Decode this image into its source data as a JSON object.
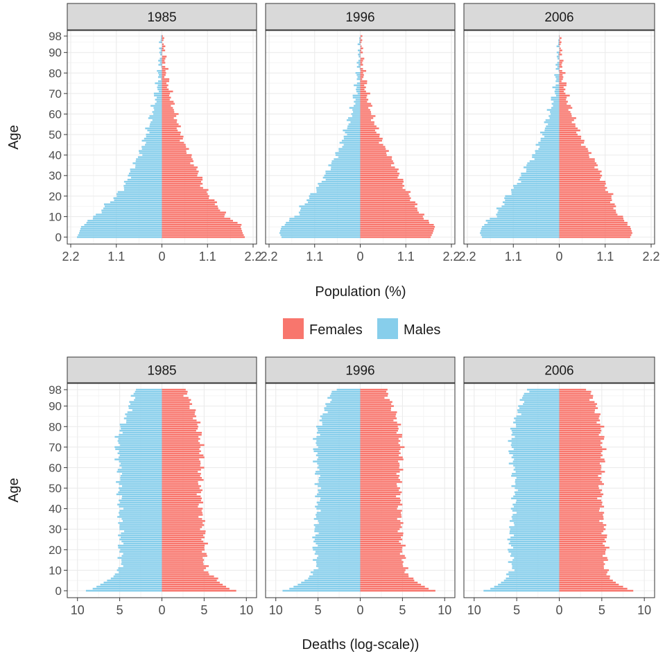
{
  "legend": {
    "items": [
      {
        "label": "Females",
        "color": "#F8766D"
      },
      {
        "label": "Males",
        "color": "#87CEEB"
      }
    ],
    "placement": "between-plots"
  },
  "chart_data": [
    {
      "type": "bar",
      "orientation": "population-pyramid",
      "facets": [
        "1985",
        "1996",
        "2006"
      ],
      "xlabel": "Population (%)",
      "ylabel": "Age",
      "x_tick_labels": [
        "2.2",
        "1.1",
        "0",
        "1.1",
        "2.2"
      ],
      "x_ticks": [
        -2.2,
        -1.1,
        0,
        1.1,
        2.2
      ],
      "xlim": [
        -2.2,
        2.2
      ],
      "y_ticks": [
        0,
        10,
        20,
        30,
        40,
        50,
        60,
        70,
        80,
        90,
        98
      ],
      "ylim": [
        0,
        98
      ],
      "grid": true,
      "panels": [
        {
          "facet": "1985",
          "age_points": [
            0,
            2,
            5,
            8,
            10,
            15,
            20,
            25,
            30,
            35,
            40,
            45,
            50,
            55,
            60,
            65,
            70,
            75,
            80,
            85,
            90,
            95,
            98
          ],
          "females": [
            2.0,
            1.95,
            1.9,
            1.75,
            1.55,
            1.35,
            1.15,
            0.98,
            0.92,
            0.78,
            0.68,
            0.55,
            0.45,
            0.38,
            0.33,
            0.25,
            0.2,
            0.14,
            0.1,
            0.07,
            0.05,
            0.03,
            0.02
          ],
          "males": [
            -2.05,
            -2.0,
            -1.95,
            -1.8,
            -1.6,
            -1.38,
            -1.1,
            -0.9,
            -0.8,
            -0.68,
            -0.55,
            -0.45,
            -0.38,
            -0.3,
            -0.25,
            -0.18,
            -0.14,
            -0.1,
            -0.07,
            -0.05,
            -0.03,
            -0.02,
            -0.01
          ]
        },
        {
          "facet": "1996",
          "age_points": [
            0,
            2,
            5,
            8,
            10,
            15,
            20,
            25,
            30,
            35,
            40,
            45,
            50,
            55,
            60,
            65,
            70,
            75,
            80,
            85,
            90,
            95,
            98
          ],
          "females": [
            1.7,
            1.75,
            1.8,
            1.65,
            1.5,
            1.35,
            1.2,
            1.05,
            0.95,
            0.82,
            0.7,
            0.55,
            0.45,
            0.35,
            0.28,
            0.22,
            0.16,
            0.12,
            0.08,
            0.05,
            0.03,
            0.02,
            0.01
          ],
          "males": [
            -1.9,
            -1.95,
            -1.9,
            -1.75,
            -1.55,
            -1.4,
            -1.2,
            -1.0,
            -0.85,
            -0.72,
            -0.58,
            -0.45,
            -0.38,
            -0.3,
            -0.22,
            -0.16,
            -0.12,
            -0.08,
            -0.06,
            -0.04,
            -0.02,
            -0.01,
            -0.01
          ]
        },
        {
          "facet": "2006",
          "age_points": [
            0,
            2,
            5,
            8,
            10,
            15,
            20,
            25,
            30,
            35,
            40,
            45,
            50,
            55,
            60,
            65,
            70,
            75,
            80,
            85,
            90,
            95,
            98
          ],
          "females": [
            1.7,
            1.75,
            1.7,
            1.6,
            1.45,
            1.3,
            1.25,
            1.1,
            1.0,
            0.9,
            0.75,
            0.6,
            0.48,
            0.38,
            0.3,
            0.22,
            0.16,
            0.12,
            0.08,
            0.05,
            0.03,
            0.02,
            0.01
          ],
          "males": [
            -1.85,
            -1.9,
            -1.85,
            -1.7,
            -1.55,
            -1.4,
            -1.25,
            -1.05,
            -0.9,
            -0.78,
            -0.6,
            -0.5,
            -0.4,
            -0.32,
            -0.24,
            -0.18,
            -0.12,
            -0.08,
            -0.06,
            -0.04,
            -0.02,
            -0.01,
            -0.01
          ]
        }
      ]
    },
    {
      "type": "bar",
      "orientation": "population-pyramid",
      "facets": [
        "1985",
        "1996",
        "2006"
      ],
      "xlabel": "Deaths (log-scale))",
      "ylabel": "Age",
      "x_tick_labels": [
        "10",
        "5",
        "0",
        "5",
        "10"
      ],
      "x_ticks": [
        -10,
        -5,
        0,
        5,
        10
      ],
      "xlim": [
        -10.8,
        10.8
      ],
      "y_ticks": [
        0,
        10,
        20,
        30,
        40,
        50,
        60,
        70,
        80,
        90,
        98
      ],
      "ylim": [
        0,
        98
      ],
      "grid": true,
      "panels": [
        {
          "facet": "1985",
          "age_points": [
            0,
            1,
            3,
            5,
            8,
            10,
            15,
            20,
            25,
            30,
            35,
            40,
            45,
            50,
            55,
            60,
            65,
            70,
            75,
            80,
            85,
            90,
            95,
            98
          ],
          "females": [
            8.8,
            8.0,
            7.2,
            6.5,
            5.8,
            5.2,
            5.0,
            5.1,
            5.0,
            4.9,
            4.8,
            4.6,
            4.6,
            4.5,
            4.6,
            4.6,
            4.7,
            4.6,
            4.5,
            4.3,
            4.0,
            3.5,
            3.0,
            2.8
          ],
          "males": [
            -9.0,
            -8.2,
            -7.3,
            -6.5,
            -5.6,
            -5.0,
            -4.8,
            -5.0,
            -4.9,
            -4.9,
            -5.0,
            -5.0,
            -5.0,
            -5.1,
            -5.0,
            -5.0,
            -5.2,
            -5.3,
            -5.2,
            -4.8,
            -4.2,
            -3.8,
            -3.4,
            -3.0
          ]
        },
        {
          "facet": "1996",
          "age_points": [
            0,
            1,
            3,
            5,
            8,
            10,
            15,
            20,
            25,
            30,
            35,
            40,
            45,
            50,
            55,
            60,
            65,
            70,
            75,
            80,
            85,
            90,
            95,
            98
          ],
          "females": [
            8.9,
            8.1,
            7.2,
            6.4,
            5.7,
            5.3,
            5.1,
            5.0,
            4.9,
            4.8,
            4.8,
            4.7,
            4.7,
            4.6,
            4.6,
            4.7,
            4.8,
            4.8,
            4.7,
            4.5,
            4.2,
            3.8,
            3.2,
            3.0
          ],
          "males": [
            -9.2,
            -8.4,
            -7.4,
            -6.6,
            -5.8,
            -5.3,
            -5.2,
            -5.4,
            -5.4,
            -5.3,
            -5.2,
            -5.1,
            -5.0,
            -5.0,
            -5.0,
            -5.1,
            -5.2,
            -5.3,
            -5.2,
            -4.9,
            -4.5,
            -4.0,
            -3.5,
            -3.2
          ]
        },
        {
          "facet": "2006",
          "age_points": [
            0,
            1,
            3,
            5,
            8,
            10,
            15,
            20,
            25,
            30,
            35,
            40,
            45,
            50,
            55,
            60,
            65,
            70,
            75,
            80,
            85,
            90,
            95,
            98
          ],
          "females": [
            8.7,
            8.0,
            7.0,
            6.3,
            5.8,
            5.4,
            5.4,
            5.5,
            5.4,
            5.3,
            5.1,
            5.0,
            4.9,
            4.9,
            4.9,
            5.0,
            5.1,
            5.1,
            5.0,
            4.9,
            4.6,
            4.3,
            3.8,
            3.4
          ],
          "males": [
            -8.9,
            -8.1,
            -7.2,
            -6.5,
            -5.9,
            -5.6,
            -5.6,
            -5.8,
            -5.8,
            -5.7,
            -5.5,
            -5.4,
            -5.3,
            -5.2,
            -5.3,
            -5.4,
            -5.6,
            -5.7,
            -5.6,
            -5.4,
            -5.0,
            -4.6,
            -4.2,
            -3.8
          ]
        }
      ]
    }
  ]
}
